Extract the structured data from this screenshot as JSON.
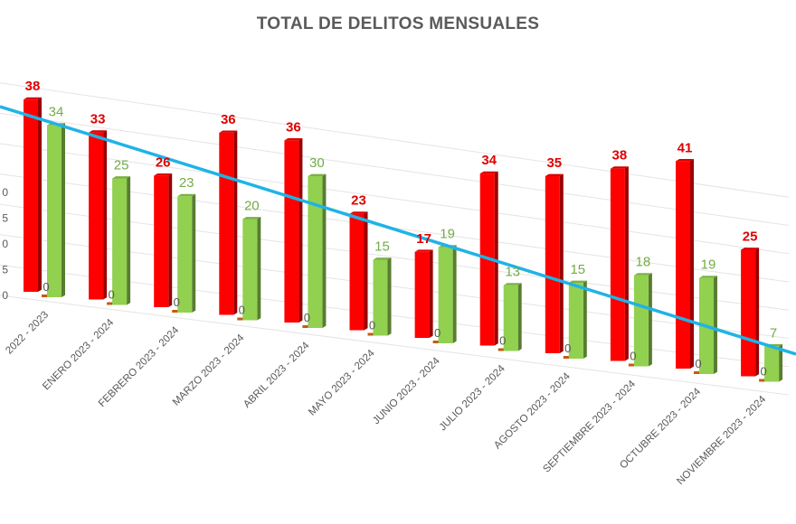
{
  "chart_data": {
    "type": "bar",
    "title": "TOTAL DE DELITOS MENSUALES",
    "categories": [
      "2022 - 2023",
      "ENERO 2023 - 2024",
      "FEBRERO 2023 - 2024",
      "MARZO 2023 - 2024",
      "ABRIL 2023 - 2024",
      "MAYO 2023 - 2024",
      "JUNIO 2023 - 2024",
      "JULIO 2023 - 2024",
      "AGOSTO 2023 - 2024",
      "SEPTIEMBRE 2023 - 2024",
      "OCTUBRE 2023 - 2024",
      "NOVIEMBRE 2023 - 2024"
    ],
    "series": [
      {
        "values": [
          38,
          33,
          26,
          36,
          36,
          23,
          17,
          34,
          35,
          38,
          41,
          25
        ],
        "color": "#ff0000",
        "label_color": "#e00000"
      },
      {
        "values": [
          34,
          25,
          23,
          20,
          30,
          15,
          19,
          13,
          15,
          18,
          19,
          7
        ],
        "color": "#92d050",
        "label_color": "#70ad47"
      },
      {
        "values": [
          0,
          0,
          0,
          0,
          0,
          0,
          0,
          0,
          0,
          0,
          0,
          0
        ],
        "color": "#c55a11",
        "label_color": "#595959"
      }
    ],
    "trendline": {
      "type": "linear",
      "color": "#1fb3e6"
    },
    "yticks": [
      "0",
      "5",
      "0",
      "5",
      "0"
    ],
    "ylim": [
      0,
      45
    ],
    "grid": true,
    "legend": "none"
  }
}
